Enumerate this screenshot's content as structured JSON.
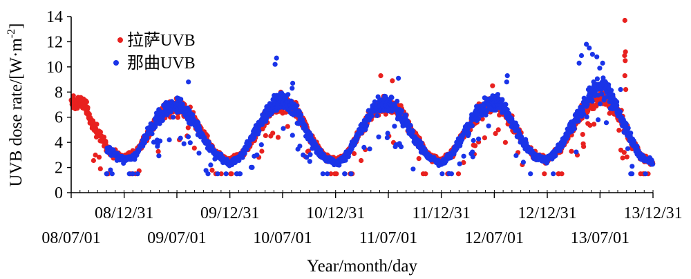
{
  "chart_data": {
    "type": "scatter",
    "xlabel": "Year/month/day",
    "ylabel": "UVB dose rate/[W·m",
    "ylabel_sup": "-2",
    "ylabel_close": "]",
    "ylim": [
      0,
      14
    ],
    "yticks": [
      0,
      2,
      4,
      6,
      8,
      10,
      12,
      14
    ],
    "xlim": [
      "2008-07-01",
      "2013-12-31"
    ],
    "xticks_top": [
      "08/12/31",
      "09/12/31",
      "10/12/31",
      "11/12/31",
      "12/12/31",
      "13/12/31"
    ],
    "xticks_bottom": [
      "08/07/01",
      "09/07/01",
      "10/07/01",
      "11/07/01",
      "12/07/01",
      "13/07/01"
    ],
    "grid": false,
    "legend_position": "top-left",
    "series": [
      {
        "name": "拉萨UVB",
        "color": "#e8211f",
        "description": "daily UVB dose rate at Lhasa",
        "anchors": [
          [
            "2008-07-01",
            7.0
          ],
          [
            "2008-08-15",
            6.9
          ],
          [
            "2008-10-01",
            4.8
          ],
          [
            "2008-11-15",
            3.2
          ],
          [
            "2008-12-31",
            2.7
          ],
          [
            "2009-02-10",
            3.2
          ],
          [
            "2009-03-20",
            4.5
          ],
          [
            "2009-05-01",
            6.0
          ],
          [
            "2009-06-10",
            6.7
          ],
          [
            "2009-07-10",
            6.8
          ],
          [
            "2009-08-15",
            6.3
          ],
          [
            "2009-09-25",
            4.8
          ],
          [
            "2009-11-10",
            3.2
          ],
          [
            "2009-12-31",
            2.5
          ],
          [
            "2010-02-10",
            3.0
          ],
          [
            "2010-03-25",
            4.5
          ],
          [
            "2010-05-10",
            6.2
          ],
          [
            "2010-06-20",
            6.9
          ],
          [
            "2010-07-20",
            7.1
          ],
          [
            "2010-08-25",
            6.3
          ],
          [
            "2010-10-01",
            4.6
          ],
          [
            "2010-11-15",
            3.0
          ],
          [
            "2010-12-31",
            2.5
          ],
          [
            "2011-02-10",
            3.1
          ],
          [
            "2011-03-25",
            4.8
          ],
          [
            "2011-05-10",
            6.4
          ],
          [
            "2011-06-20",
            7.0
          ],
          [
            "2011-07-20",
            6.8
          ],
          [
            "2011-08-25",
            6.0
          ],
          [
            "2011-10-01",
            4.5
          ],
          [
            "2011-11-15",
            3.0
          ],
          [
            "2011-12-31",
            2.4
          ],
          [
            "2012-02-10",
            3.3
          ],
          [
            "2012-03-25",
            4.9
          ],
          [
            "2012-05-10",
            6.4
          ],
          [
            "2012-06-20",
            7.1
          ],
          [
            "2012-07-15",
            7.0
          ],
          [
            "2012-08-20",
            6.0
          ],
          [
            "2012-10-01",
            4.3
          ],
          [
            "2012-11-15",
            3.0
          ],
          [
            "2012-12-31",
            2.6
          ],
          [
            "2013-02-10",
            3.4
          ],
          [
            "2013-03-25",
            5.0
          ],
          [
            "2013-05-05",
            6.6
          ],
          [
            "2013-06-15",
            7.5
          ],
          [
            "2013-07-05",
            7.6
          ],
          [
            "2013-08-15",
            7.0
          ],
          [
            "2013-09-15",
            5.8
          ],
          [
            "2013-10-15",
            4.2
          ],
          [
            "2013-11-15",
            3.0
          ],
          [
            "2013-12-31",
            2.4
          ]
        ],
        "outliers": [
          [
            "2013-09-25",
            13.7
          ],
          [
            "2013-09-27",
            11.2
          ],
          [
            "2013-09-24",
            10.9
          ],
          [
            "2013-09-26",
            10.5
          ],
          [
            "2013-09-25",
            9.3
          ],
          [
            "2013-09-28",
            8.2
          ],
          [
            "2011-06-05",
            9.3
          ],
          [
            "2011-07-15",
            8.9
          ],
          [
            "2010-06-25",
            8.0
          ],
          [
            "2012-06-25",
            8.5
          ],
          [
            "2008-10-10",
            1.9
          ],
          [
            "2011-03-05",
            3.1
          ],
          [
            "2012-07-15",
            5.0
          ],
          [
            "2013-05-20",
            5.5
          ]
        ]
      },
      {
        "name": "那曲UVB",
        "color": "#1a34e8",
        "description": "daily UVB dose rate at Nagqu",
        "anchors": [
          [
            "2008-11-01",
            3.4
          ],
          [
            "2008-12-31",
            2.6
          ],
          [
            "2009-02-10",
            3.0
          ],
          [
            "2009-03-20",
            4.6
          ],
          [
            "2009-05-01",
            6.1
          ],
          [
            "2009-06-10",
            6.9
          ],
          [
            "2009-07-10",
            7.0
          ],
          [
            "2009-08-15",
            6.1
          ],
          [
            "2009-09-25",
            4.6
          ],
          [
            "2009-11-10",
            3.0
          ],
          [
            "2009-12-31",
            2.3
          ],
          [
            "2010-02-10",
            2.9
          ],
          [
            "2010-03-25",
            4.7
          ],
          [
            "2010-05-10",
            6.4
          ],
          [
            "2010-06-20",
            7.3
          ],
          [
            "2010-07-20",
            7.2
          ],
          [
            "2010-08-25",
            6.2
          ],
          [
            "2010-10-01",
            4.4
          ],
          [
            "2010-11-15",
            2.9
          ],
          [
            "2010-12-31",
            2.3
          ],
          [
            "2011-02-10",
            3.0
          ],
          [
            "2011-03-25",
            4.9
          ],
          [
            "2011-05-10",
            6.6
          ],
          [
            "2011-06-20",
            7.2
          ],
          [
            "2011-07-20",
            6.9
          ],
          [
            "2011-08-25",
            5.8
          ],
          [
            "2011-10-01",
            4.3
          ],
          [
            "2011-11-15",
            2.9
          ],
          [
            "2011-12-31",
            2.3
          ],
          [
            "2012-02-10",
            3.2
          ],
          [
            "2012-03-25",
            4.9
          ],
          [
            "2012-05-10",
            6.5
          ],
          [
            "2012-06-20",
            7.2
          ],
          [
            "2012-07-20",
            7.1
          ],
          [
            "2012-08-25",
            5.9
          ],
          [
            "2012-10-01",
            4.2
          ],
          [
            "2012-11-15",
            2.9
          ],
          [
            "2012-12-31",
            2.6
          ],
          [
            "2013-02-10",
            3.5
          ],
          [
            "2013-03-25",
            5.2
          ],
          [
            "2013-05-05",
            7.0
          ],
          [
            "2013-06-15",
            8.4
          ],
          [
            "2013-07-05",
            8.6
          ],
          [
            "2013-08-15",
            7.4
          ],
          [
            "2013-09-10",
            6.0
          ],
          [
            "2013-10-15",
            4.3
          ],
          [
            "2013-11-15",
            3.0
          ],
          [
            "2013-12-31",
            2.3
          ]
        ],
        "outliers": [
          [
            "2010-06-10",
            10.7
          ],
          [
            "2010-06-05",
            10.2
          ],
          [
            "2010-08-05",
            8.7
          ],
          [
            "2010-08-03",
            8.3
          ],
          [
            "2011-08-05",
            9.1
          ],
          [
            "2012-08-15",
            9.3
          ],
          [
            "2012-08-13",
            8.8
          ],
          [
            "2013-05-15",
            11.8
          ],
          [
            "2013-05-25",
            11.5
          ],
          [
            "2013-06-05",
            11.0
          ],
          [
            "2013-06-20",
            10.8
          ],
          [
            "2013-07-10",
            10.3
          ],
          [
            "2013-04-20",
            10.3
          ],
          [
            "2013-04-28",
            10.9
          ],
          [
            "2013-06-30",
            9.9
          ],
          [
            "2009-08-10",
            8.8
          ],
          [
            "2010-03-25",
            2.9
          ],
          [
            "2010-09-10",
            3.0
          ],
          [
            "2013-09-10",
            8.2
          ],
          [
            "2013-10-20",
            2.1
          ],
          [
            "2013-10-05",
            3.5
          ]
        ]
      }
    ]
  }
}
